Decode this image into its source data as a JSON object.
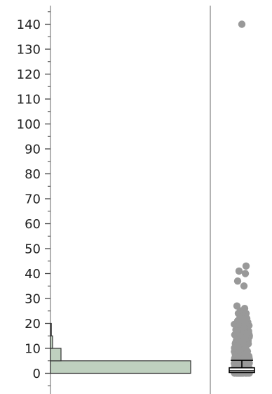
{
  "chart_data": {
    "type": "histogram",
    "title": "",
    "xlabel": "",
    "ylabel": "",
    "ylim": [
      -8,
      148
    ],
    "y_ticks": [
      "0",
      "10",
      "20",
      "30",
      "40",
      "50",
      "60",
      "70",
      "80",
      "90",
      "100",
      "110",
      "120",
      "130",
      "140"
    ],
    "grid": false,
    "histogram": {
      "orientation": "horizontal",
      "bins": [
        {
          "from": 0,
          "to": 5,
          "relative_length": 1.0
        },
        {
          "from": 5,
          "to": 10,
          "relative_length": 0.075
        },
        {
          "from": 10,
          "to": 15,
          "relative_length": 0.015
        },
        {
          "from": 15,
          "to": 20,
          "relative_length": 0.006
        }
      ],
      "fill_color": "#bfd0bf",
      "stroke_color": "#333333"
    },
    "box_plot": {
      "q1": 0.3,
      "median": 1.0,
      "q3": 2.2,
      "whisker_low": 0,
      "whisker_high": 5.2
    },
    "points": {
      "color": "#999999",
      "outliers": [
        140,
        43,
        41,
        40,
        37,
        35,
        27,
        26,
        25,
        24,
        24,
        23,
        22,
        22,
        21,
        20,
        20,
        19,
        18,
        17,
        16,
        15,
        14,
        13,
        12,
        11,
        10,
        9,
        8,
        7,
        6
      ]
    }
  }
}
